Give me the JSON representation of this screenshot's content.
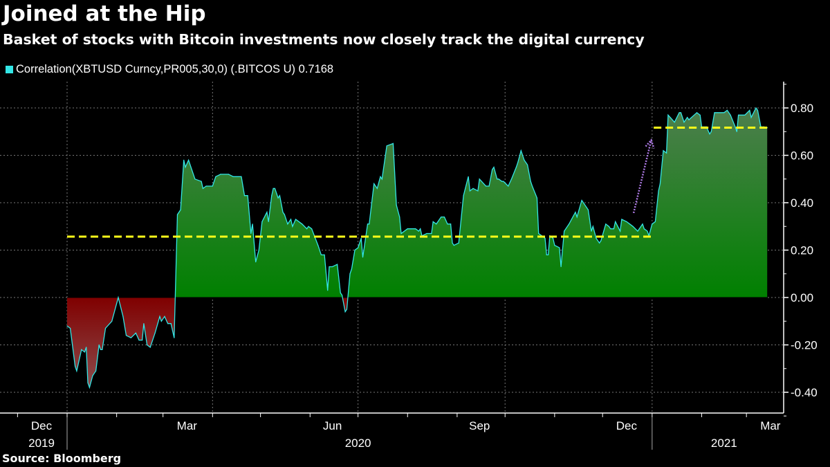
{
  "header": {
    "title": "Joined at the Hip",
    "subtitle": "Basket of stocks with Bitcoin investments now closely track the digital currency"
  },
  "footer": {
    "source": "Source: Bloomberg"
  },
  "colors": {
    "background": "#000000",
    "line": "#33e6e6",
    "positive_fill_top": "#4e7f4e",
    "positive_fill_bottom": "#008000",
    "negative_fill_top": "#800000",
    "negative_fill_bottom": "#8c5050",
    "average_line": "#ffff1a",
    "arrow": "#b07ce8"
  },
  "chart_data": {
    "type": "area",
    "title": "Joined at the Hip",
    "subtitle": "Basket of stocks with Bitcoin investments now closely track the digital currency",
    "legend": {
      "position": "top-left",
      "entries": [
        {
          "name": "Correlation(XBTUSD Curncy,PR005,30,0) (.BITCOS U) 0.7168",
          "color": "#33e6e6"
        }
      ]
    },
    "ylim": [
      -0.5,
      0.9
    ],
    "y_axis_side": "right",
    "y_ticks": [
      "0.80",
      "0.60",
      "0.40",
      "0.20",
      "0.00",
      "-0.20",
      "-0.40"
    ],
    "y_tick_values": [
      0.8,
      0.6,
      0.4,
      0.2,
      0.0,
      -0.2,
      -0.4
    ],
    "x_range": [
      "2019-12-01",
      "2021-03-31"
    ],
    "x_month_labels": [
      {
        "label": "Dec",
        "date": "2019-12-16"
      },
      {
        "label": "Mar",
        "date": "2020-03-16"
      },
      {
        "label": "Jun",
        "date": "2020-06-15"
      },
      {
        "label": "Sep",
        "date": "2020-09-15"
      },
      {
        "label": "Dec",
        "date": "2020-12-16"
      },
      {
        "label": "Mar",
        "date": "2021-03-16"
      }
    ],
    "x_year_labels": [
      {
        "label": "2019",
        "date": "2019-12-16"
      },
      {
        "label": "2020",
        "date": "2020-07-01"
      },
      {
        "label": "2021",
        "date": "2021-02-15"
      }
    ],
    "grid": true,
    "reference_lines": [
      {
        "value": 0.257,
        "from": "2020-01-01",
        "to": "2020-12-31",
        "style": "dashed",
        "color": "#ffff1a"
      },
      {
        "value": 0.7168,
        "from": "2021-01-02",
        "to": "2021-03-14",
        "style": "dashed",
        "color": "#ffff1a"
      }
    ],
    "annotation_arrow": {
      "from": {
        "date": "2020-12-20",
        "value": 0.38
      },
      "to": {
        "date": "2020-12-31",
        "value": 0.67
      },
      "style": "dotted",
      "color": "#b07ce8"
    },
    "last_value": 0.7168,
    "series": [
      {
        "name": "Correlation(XBTUSD Curncy,PR005,30,0) (.BITCOS U)",
        "points": [
          [
            "2020-01-01",
            -0.12
          ],
          [
            "2020-01-03",
            -0.13
          ],
          [
            "2020-01-06",
            -0.29
          ],
          [
            "2020-01-07",
            -0.31
          ],
          [
            "2020-01-10",
            -0.22
          ],
          [
            "2020-01-12",
            -0.23
          ],
          [
            "2020-01-13",
            -0.21
          ],
          [
            "2020-01-14",
            -0.36
          ],
          [
            "2020-01-15",
            -0.38
          ],
          [
            "2020-01-17",
            -0.33
          ],
          [
            "2020-01-19",
            -0.31
          ],
          [
            "2020-01-21",
            -0.2
          ],
          [
            "2020-01-22",
            -0.22
          ],
          [
            "2020-01-23",
            -0.22
          ],
          [
            "2020-01-25",
            -0.13
          ],
          [
            "2020-01-29",
            -0.1
          ],
          [
            "2020-02-02",
            0.0
          ],
          [
            "2020-02-05",
            -0.08
          ],
          [
            "2020-02-07",
            -0.16
          ],
          [
            "2020-02-10",
            -0.17
          ],
          [
            "2020-02-13",
            -0.15
          ],
          [
            "2020-02-15",
            -0.18
          ],
          [
            "2020-02-17",
            -0.18
          ],
          [
            "2020-02-18",
            -0.11
          ],
          [
            "2020-02-20",
            -0.2
          ],
          [
            "2020-02-22",
            -0.21
          ],
          [
            "2020-02-25",
            -0.15
          ],
          [
            "2020-02-28",
            -0.08
          ],
          [
            "2020-02-29",
            -0.1
          ],
          [
            "2020-03-02",
            -0.08
          ],
          [
            "2020-03-04",
            -0.11
          ],
          [
            "2020-03-06",
            -0.11
          ],
          [
            "2020-03-08",
            -0.17
          ],
          [
            "2020-03-10",
            0.35
          ],
          [
            "2020-03-12",
            0.37
          ],
          [
            "2020-03-14",
            0.58
          ],
          [
            "2020-03-15",
            0.55
          ],
          [
            "2020-03-17",
            0.58
          ],
          [
            "2020-03-21",
            0.5
          ],
          [
            "2020-03-25",
            0.49
          ],
          [
            "2020-03-26",
            0.46
          ],
          [
            "2020-03-28",
            0.47
          ],
          [
            "2020-04-01",
            0.47
          ],
          [
            "2020-04-03",
            0.51
          ],
          [
            "2020-04-06",
            0.52
          ],
          [
            "2020-04-11",
            0.52
          ],
          [
            "2020-04-14",
            0.51
          ],
          [
            "2020-04-19",
            0.51
          ],
          [
            "2020-04-21",
            0.43
          ],
          [
            "2020-04-23",
            0.43
          ],
          [
            "2020-04-25",
            0.27
          ],
          [
            "2020-04-26",
            0.31
          ],
          [
            "2020-04-28",
            0.15
          ],
          [
            "2020-04-30",
            0.2
          ],
          [
            "2020-05-02",
            0.32
          ],
          [
            "2020-05-05",
            0.36
          ],
          [
            "2020-05-06",
            0.32
          ],
          [
            "2020-05-08",
            0.43
          ],
          [
            "2020-05-09",
            0.46
          ],
          [
            "2020-05-10",
            0.46
          ],
          [
            "2020-05-12",
            0.42
          ],
          [
            "2020-05-13",
            0.43
          ],
          [
            "2020-05-15",
            0.36
          ],
          [
            "2020-05-16",
            0.35
          ],
          [
            "2020-05-18",
            0.31
          ],
          [
            "2020-05-20",
            0.33
          ],
          [
            "2020-05-21",
            0.3
          ],
          [
            "2020-05-23",
            0.33
          ],
          [
            "2020-05-27",
            0.31
          ],
          [
            "2020-05-30",
            0.29
          ],
          [
            "2020-05-31",
            0.3
          ],
          [
            "2020-06-02",
            0.29
          ],
          [
            "2020-06-06",
            0.22
          ],
          [
            "2020-06-08",
            0.18
          ],
          [
            "2020-06-10",
            0.18
          ],
          [
            "2020-06-12",
            0.03
          ],
          [
            "2020-06-13",
            0.13
          ],
          [
            "2020-06-15",
            0.13
          ],
          [
            "2020-06-18",
            0.14
          ],
          [
            "2020-06-20",
            0.02
          ],
          [
            "2020-06-21",
            0.01
          ],
          [
            "2020-06-23",
            -0.06
          ],
          [
            "2020-06-24",
            -0.05
          ],
          [
            "2020-06-26",
            0.1
          ],
          [
            "2020-06-27",
            0.12
          ],
          [
            "2020-06-29",
            0.2
          ],
          [
            "2020-07-01",
            0.21
          ],
          [
            "2020-07-03",
            0.25
          ],
          [
            "2020-07-04",
            0.17
          ],
          [
            "2020-07-07",
            0.31
          ],
          [
            "2020-07-08",
            0.31
          ],
          [
            "2020-07-11",
            0.48
          ],
          [
            "2020-07-12",
            0.47
          ],
          [
            "2020-07-13",
            0.46
          ],
          [
            "2020-07-15",
            0.51
          ],
          [
            "2020-07-16",
            0.5
          ],
          [
            "2020-07-19",
            0.64
          ],
          [
            "2020-07-23",
            0.65
          ],
          [
            "2020-07-25",
            0.39
          ],
          [
            "2020-07-27",
            0.34
          ],
          [
            "2020-07-28",
            0.27
          ],
          [
            "2020-08-01",
            0.29
          ],
          [
            "2020-08-03",
            0.29
          ],
          [
            "2020-08-06",
            0.29
          ],
          [
            "2020-08-08",
            0.28
          ],
          [
            "2020-08-09",
            0.29
          ],
          [
            "2020-08-10",
            0.26
          ],
          [
            "2020-08-13",
            0.27
          ],
          [
            "2020-08-16",
            0.27
          ],
          [
            "2020-08-17",
            0.32
          ],
          [
            "2020-08-19",
            0.31
          ],
          [
            "2020-08-22",
            0.34
          ],
          [
            "2020-08-24",
            0.34
          ],
          [
            "2020-08-26",
            0.31
          ],
          [
            "2020-08-28",
            0.31
          ],
          [
            "2020-08-29",
            0.23
          ],
          [
            "2020-08-30",
            0.22
          ],
          [
            "2020-09-02",
            0.23
          ],
          [
            "2020-09-05",
            0.43
          ],
          [
            "2020-09-08",
            0.51
          ],
          [
            "2020-09-09",
            0.45
          ],
          [
            "2020-09-11",
            0.46
          ],
          [
            "2020-09-14",
            0.45
          ],
          [
            "2020-09-15",
            0.5
          ],
          [
            "2020-09-19",
            0.47
          ],
          [
            "2020-09-21",
            0.47
          ],
          [
            "2020-09-23",
            0.54
          ],
          [
            "2020-09-24",
            0.55
          ],
          [
            "2020-09-26",
            0.5
          ],
          [
            "2020-09-27",
            0.5
          ],
          [
            "2020-09-29",
            0.49
          ],
          [
            "2020-09-30",
            0.49
          ],
          [
            "2020-10-03",
            0.47
          ],
          [
            "2020-10-05",
            0.5
          ],
          [
            "2020-10-08",
            0.55
          ],
          [
            "2020-10-09",
            0.57
          ],
          [
            "2020-10-11",
            0.62
          ],
          [
            "2020-10-13",
            0.58
          ],
          [
            "2020-10-15",
            0.56
          ],
          [
            "2020-10-17",
            0.49
          ],
          [
            "2020-10-18",
            0.47
          ],
          [
            "2020-10-21",
            0.42
          ],
          [
            "2020-10-22",
            0.27
          ],
          [
            "2020-10-24",
            0.26
          ],
          [
            "2020-10-26",
            0.25
          ],
          [
            "2020-10-27",
            0.18
          ],
          [
            "2020-10-28",
            0.18
          ],
          [
            "2020-10-29",
            0.26
          ],
          [
            "2020-10-31",
            0.25
          ],
          [
            "2020-11-01",
            0.22
          ],
          [
            "2020-11-04",
            0.21
          ],
          [
            "2020-11-05",
            0.13
          ],
          [
            "2020-11-07",
            0.28
          ],
          [
            "2020-11-10",
            0.31
          ],
          [
            "2020-11-14",
            0.36
          ],
          [
            "2020-11-15",
            0.34
          ],
          [
            "2020-11-18",
            0.41
          ],
          [
            "2020-11-21",
            0.38
          ],
          [
            "2020-11-22",
            0.37
          ],
          [
            "2020-11-24",
            0.28
          ],
          [
            "2020-11-25",
            0.3
          ],
          [
            "2020-11-27",
            0.25
          ],
          [
            "2020-11-29",
            0.23
          ],
          [
            "2020-11-30",
            0.24
          ],
          [
            "2020-12-03",
            0.31
          ],
          [
            "2020-12-05",
            0.3
          ],
          [
            "2020-12-06",
            0.29
          ],
          [
            "2020-12-08",
            0.29
          ],
          [
            "2020-12-09",
            0.32
          ],
          [
            "2020-12-12",
            0.28
          ],
          [
            "2020-12-13",
            0.33
          ],
          [
            "2020-12-16",
            0.32
          ],
          [
            "2020-12-18",
            0.31
          ],
          [
            "2020-12-20",
            0.3
          ],
          [
            "2020-12-23",
            0.28
          ],
          [
            "2020-12-24",
            0.29
          ],
          [
            "2020-12-26",
            0.31
          ],
          [
            "2020-12-27",
            0.29
          ],
          [
            "2020-12-29",
            0.28
          ],
          [
            "2020-12-30",
            0.26
          ],
          [
            "2021-01-01",
            0.31
          ],
          [
            "2021-01-03",
            0.32
          ],
          [
            "2021-01-05",
            0.45
          ],
          [
            "2021-01-06",
            0.48
          ],
          [
            "2021-01-08",
            0.62
          ],
          [
            "2021-01-10",
            0.61
          ],
          [
            "2021-01-11",
            0.77
          ],
          [
            "2021-01-15",
            0.74
          ],
          [
            "2021-01-18",
            0.78
          ],
          [
            "2021-01-19",
            0.78
          ],
          [
            "2021-01-21",
            0.74
          ],
          [
            "2021-01-23",
            0.76
          ],
          [
            "2021-01-24",
            0.75
          ],
          [
            "2021-01-29",
            0.78
          ],
          [
            "2021-01-31",
            0.77
          ],
          [
            "2021-02-01",
            0.72
          ],
          [
            "2021-02-04",
            0.72
          ],
          [
            "2021-02-06",
            0.69
          ],
          [
            "2021-02-07",
            0.7
          ],
          [
            "2021-02-09",
            0.78
          ],
          [
            "2021-02-11",
            0.78
          ],
          [
            "2021-02-15",
            0.78
          ],
          [
            "2021-02-17",
            0.79
          ],
          [
            "2021-02-19",
            0.77
          ],
          [
            "2021-02-22",
            0.72
          ],
          [
            "2021-02-23",
            0.7
          ],
          [
            "2021-02-24",
            0.77
          ],
          [
            "2021-02-28",
            0.77
          ],
          [
            "2021-03-03",
            0.79
          ],
          [
            "2021-03-04",
            0.76
          ],
          [
            "2021-03-07",
            0.8
          ],
          [
            "2021-03-08",
            0.79
          ],
          [
            "2021-03-10",
            0.72
          ],
          [
            "2021-03-12",
            0.72
          ],
          [
            "2021-03-14",
            0.7168
          ]
        ]
      }
    ]
  }
}
